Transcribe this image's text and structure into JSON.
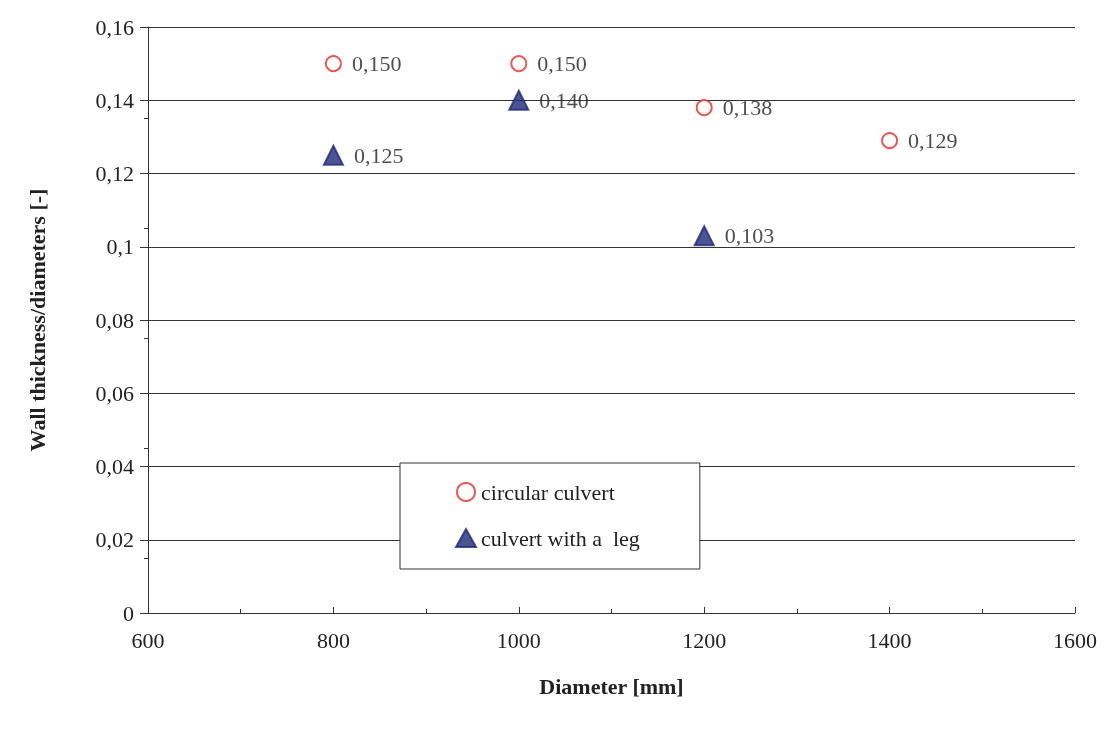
{
  "chart_data": {
    "type": "scatter",
    "xlabel": "Diameter [mm]",
    "ylabel": "Wall thickness/diameters [-]",
    "series": [
      {
        "name": "circular culvert",
        "color": "#e0302c",
        "marker": "circle",
        "x": [
          800,
          1000,
          1200,
          1400
        ],
        "values": [
          0.15,
          0.15,
          0.138,
          0.129
        ],
        "value_labels": [
          "0,150",
          "0,150",
          "0,138",
          "0,129"
        ]
      },
      {
        "name": "culvert with a  leg",
        "color": "#1f2a78",
        "marker": "triangle",
        "x": [
          800,
          1000,
          1200
        ],
        "values": [
          0.125,
          0.14,
          0.103
        ],
        "value_labels": [
          "0,125",
          "0,140",
          "0,103"
        ]
      }
    ],
    "xlim": [
      600,
      1600
    ],
    "xticks": [
      600,
      800,
      1000,
      1200,
      1400,
      1600
    ],
    "ylim": [
      0,
      0.16
    ],
    "yticks": [
      {
        "value": 0,
        "label": "0"
      },
      {
        "value": 0.02,
        "label": "0,02"
      },
      {
        "value": 0.04,
        "label": "0,04"
      },
      {
        "value": 0.06,
        "label": "0,06"
      },
      {
        "value": 0.08,
        "label": "0,08"
      },
      {
        "value": 0.1,
        "label": "0,1"
      },
      {
        "value": 0.12,
        "label": "0,12"
      },
      {
        "value": 0.14,
        "label": "0,14"
      },
      {
        "value": 0.16,
        "label": "0,16"
      }
    ],
    "grid": "y",
    "legend": "bottom"
  }
}
